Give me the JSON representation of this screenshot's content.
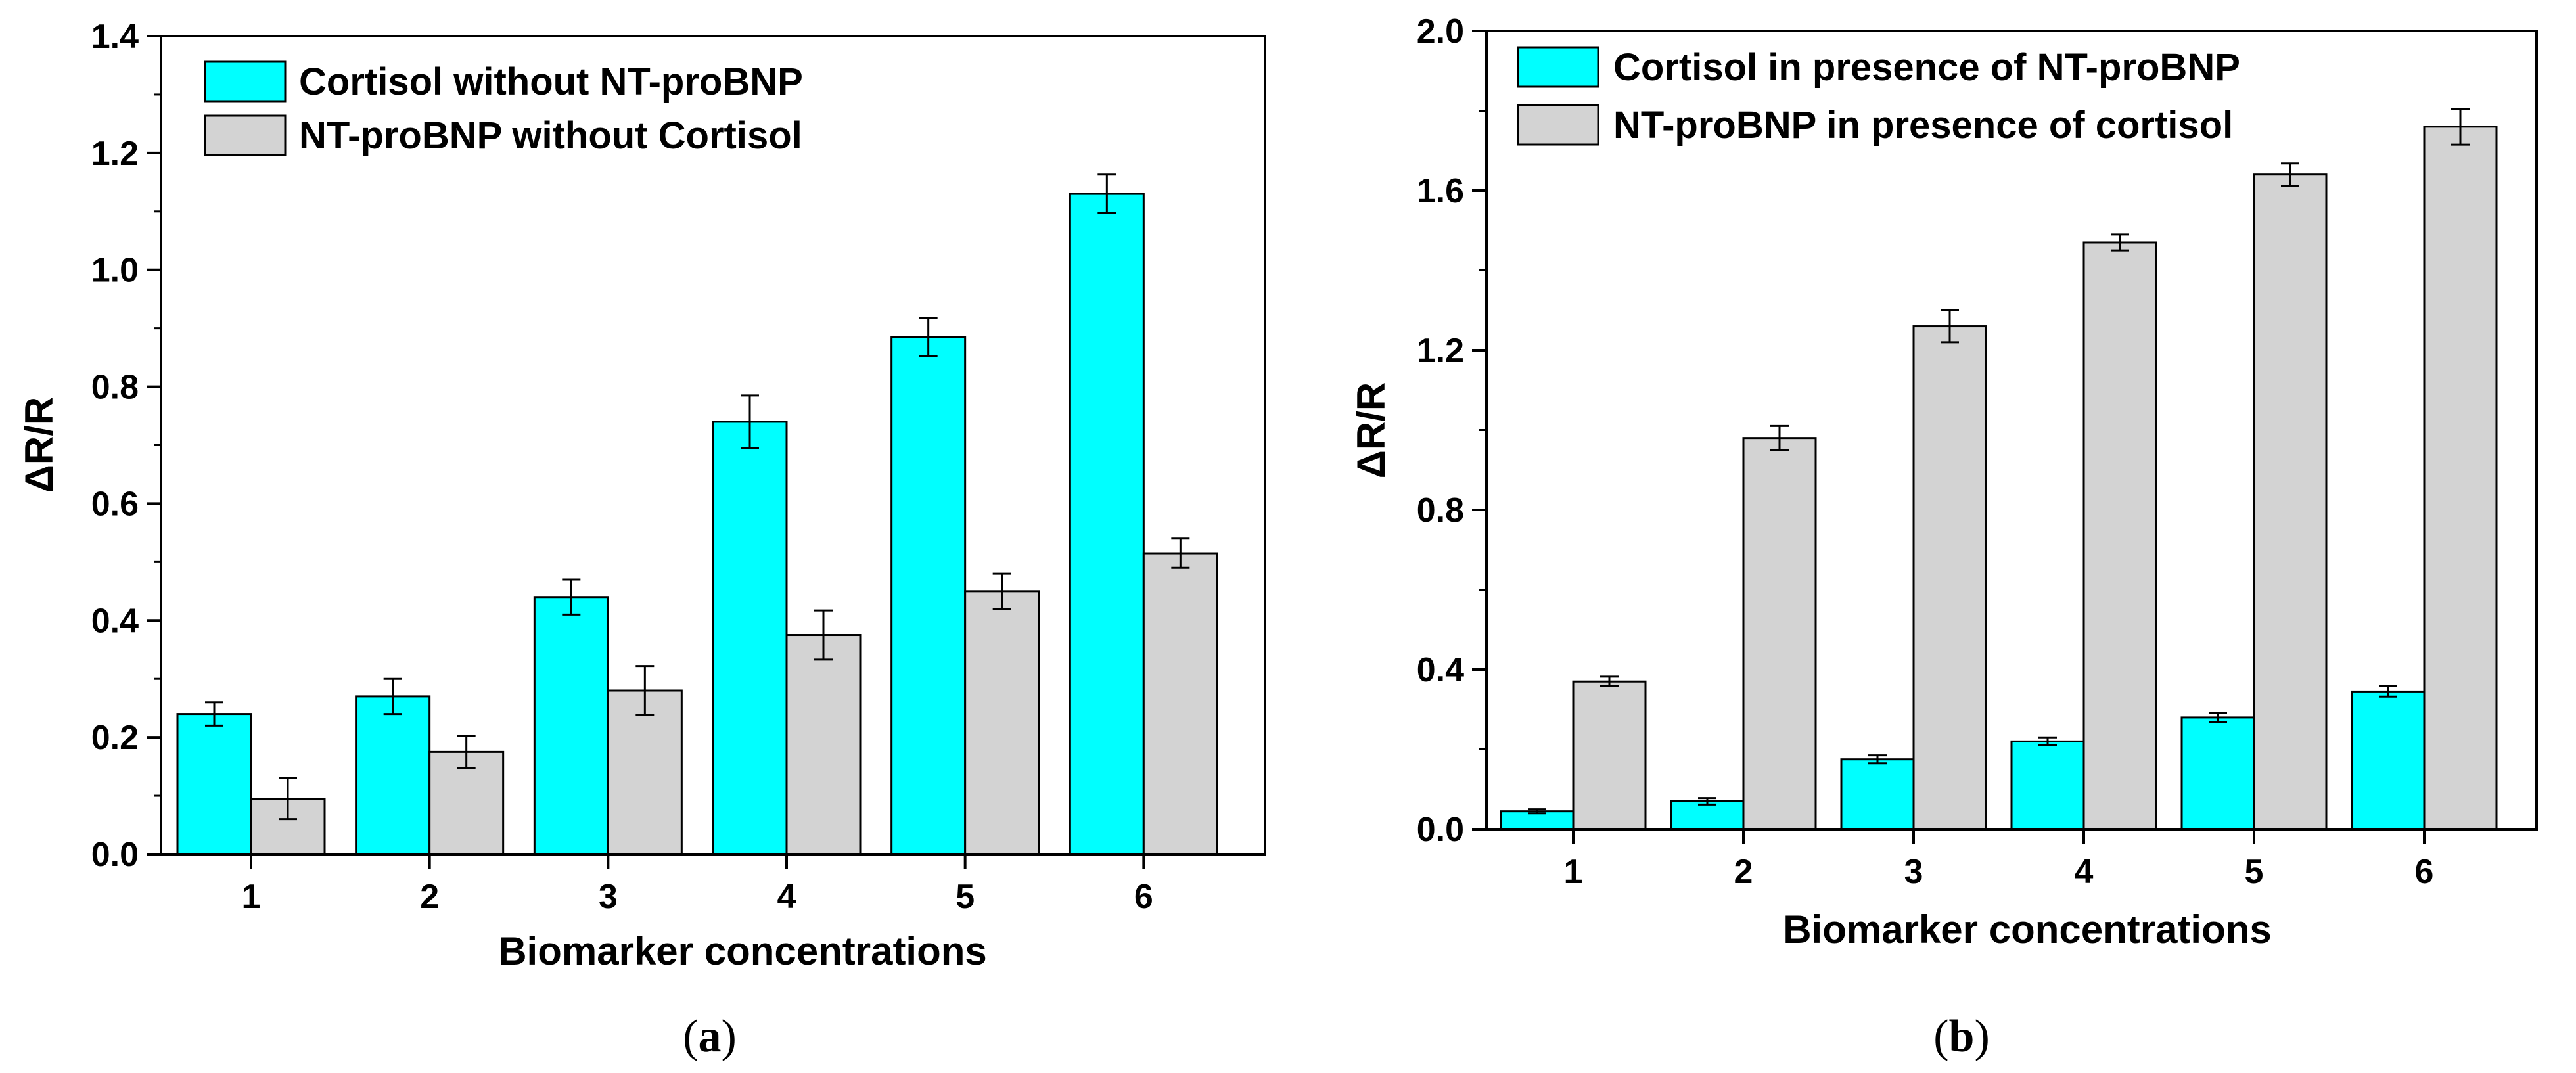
{
  "chart_data": [
    {
      "type": "bar",
      "panel_label": "a",
      "xlabel": "Biomarker concentrations",
      "ylabel": "ΔR/R",
      "categories": [
        "1",
        "2",
        "3",
        "4",
        "5",
        "6"
      ],
      "ylim": [
        0,
        1.4
      ],
      "yticks": [
        0.0,
        0.2,
        0.4,
        0.6,
        0.8,
        1.0,
        1.2,
        1.4
      ],
      "ytick_labels": [
        "0.0",
        "0.2",
        "0.4",
        "0.6",
        "0.8",
        "1.0",
        "1.2",
        "1.4"
      ],
      "legend_position": "top-left",
      "series": [
        {
          "name": "Cortisol without NT-proBNP",
          "color": "#00FFFF",
          "values": [
            0.24,
            0.27,
            0.44,
            0.74,
            0.885,
            1.13
          ],
          "errors": [
            0.02,
            0.03,
            0.03,
            0.045,
            0.033,
            0.033
          ]
        },
        {
          "name": "NT-proBNP without Cortisol",
          "color": "#D3D3D3",
          "values": [
            0.095,
            0.175,
            0.28,
            0.375,
            0.45,
            0.515
          ],
          "errors": [
            0.035,
            0.028,
            0.042,
            0.042,
            0.03,
            0.025
          ]
        }
      ]
    },
    {
      "type": "bar",
      "panel_label": "b",
      "xlabel": "Biomarker concentrations",
      "ylabel": "ΔR/R",
      "categories": [
        "1",
        "2",
        "3",
        "4",
        "5",
        "6"
      ],
      "ylim": [
        0,
        2.0
      ],
      "yticks": [
        0.0,
        0.4,
        0.8,
        1.2,
        1.6,
        2.0
      ],
      "ytick_labels": [
        "0.0",
        "0.4",
        "0.8",
        "1.2",
        "1.6",
        "2.0"
      ],
      "legend_position": "top-left",
      "series": [
        {
          "name": "Cortisol in presence of NT-proBNP",
          "color": "#00FFFF",
          "values": [
            0.045,
            0.07,
            0.175,
            0.22,
            0.28,
            0.345
          ],
          "errors": [
            0.005,
            0.008,
            0.01,
            0.01,
            0.012,
            0.013
          ]
        },
        {
          "name": "NT-proBNP in presence of cortisol",
          "color": "#D3D3D3",
          "values": [
            0.37,
            0.98,
            1.26,
            1.47,
            1.64,
            1.76
          ],
          "errors": [
            0.012,
            0.03,
            0.04,
            0.02,
            0.028,
            0.045
          ]
        }
      ]
    }
  ]
}
